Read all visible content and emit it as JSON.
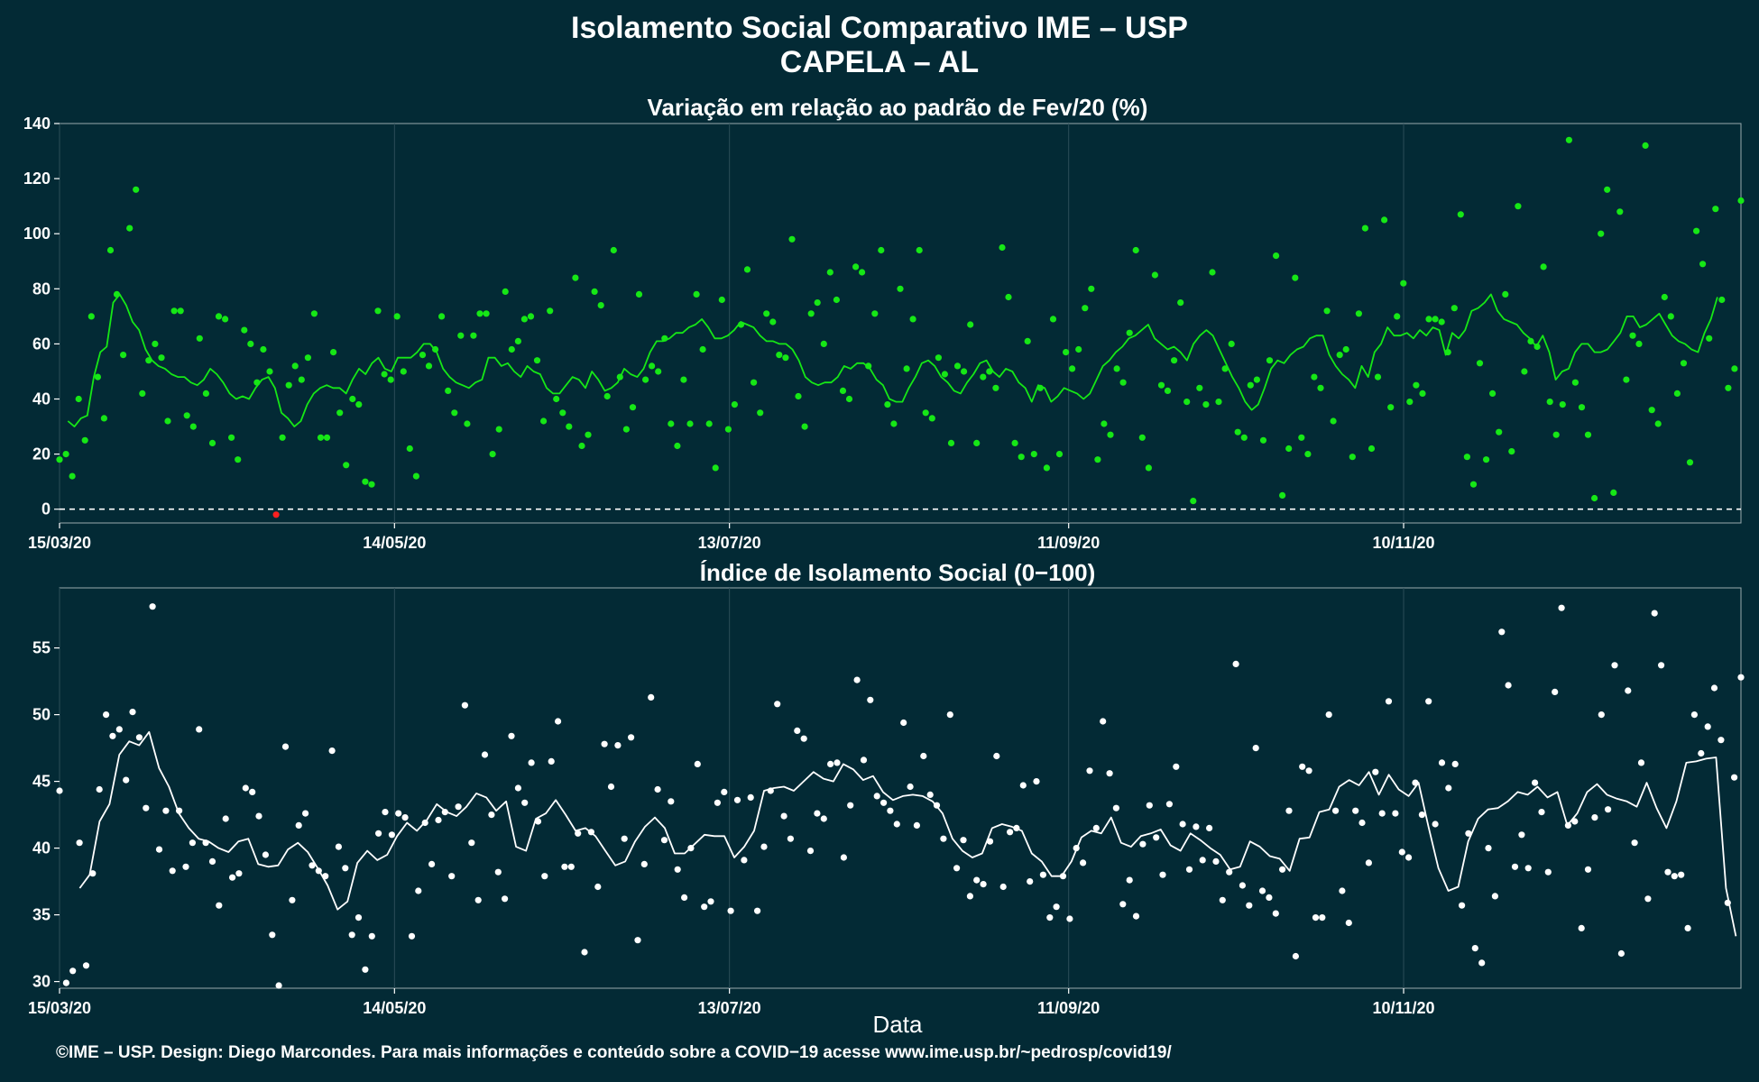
{
  "title": "Isolamento Social Comparativo IME – USP",
  "subtitle": "CAPELA – AL",
  "xlabel": "Data",
  "footer": "©IME – USP. Design: Diego Marcondes. Para mais informações e conteúdo sobre a COVID−19 acesse www.ime.usp.br/~pedrosp/covid19/",
  "x_ticks": [
    "15/03/20",
    "14/05/20",
    "13/07/20",
    "11/09/20",
    "10/11/20"
  ],
  "colors": {
    "background": "#032a35",
    "variation": "#16e716",
    "negative": "#ff2020",
    "index": "#ffffff"
  },
  "chart_data": [
    {
      "type": "scatter",
      "title": "Variação em relação ao padrão de Fev/20 (%)",
      "x_start": "15/03/20",
      "x_step_days": 3,
      "ylim": [
        -5,
        140
      ],
      "y_ticks": [
        0,
        20,
        40,
        60,
        80,
        100,
        120,
        140
      ],
      "reference_line": 0,
      "series": [
        {
          "kind": "points",
          "values": [
            18,
            20,
            12,
            40,
            25,
            70,
            48,
            33,
            94,
            78,
            56,
            102,
            116,
            42,
            54,
            60,
            55,
            32,
            72,
            72,
            34,
            30,
            62,
            42,
            24,
            70,
            69,
            26,
            18,
            65,
            60,
            46,
            58,
            50,
            -2,
            26,
            45,
            52,
            47,
            55,
            71,
            26,
            26,
            57,
            35,
            16,
            40,
            38,
            10,
            9,
            72,
            49,
            47,
            70,
            50,
            22,
            12,
            56,
            52,
            58,
            70,
            43,
            35,
            63,
            31,
            63,
            71,
            71,
            20,
            29,
            79,
            58,
            61,
            69,
            70,
            54,
            32,
            72,
            40,
            35,
            30,
            84,
            23,
            27,
            79,
            74,
            41,
            94,
            48,
            29,
            37,
            78,
            47,
            52,
            50,
            62,
            31,
            23,
            47,
            31,
            78,
            58,
            31,
            15,
            76,
            29,
            38,
            67,
            87,
            46,
            35,
            71,
            68,
            56,
            55,
            98,
            41,
            30,
            71,
            75,
            60,
            86,
            76,
            43,
            40,
            88,
            86,
            52,
            71,
            94,
            38,
            31,
            80,
            51,
            69,
            94,
            35,
            33,
            55,
            49,
            24,
            52,
            50,
            67,
            24,
            48,
            50,
            44,
            95,
            77,
            24,
            19,
            61,
            20,
            44,
            15,
            69,
            20,
            57,
            51,
            58,
            73,
            80,
            18,
            31,
            27,
            51,
            46,
            64,
            94,
            26,
            15,
            85,
            45,
            43,
            54,
            75,
            39,
            3,
            44,
            38,
            86,
            39,
            51,
            60,
            28,
            26,
            45,
            47,
            25,
            54,
            92,
            5,
            22,
            84,
            26,
            20,
            48,
            44,
            72,
            32,
            56,
            58,
            19,
            71,
            102,
            22,
            48,
            105,
            37,
            70,
            82,
            39,
            45,
            42,
            69,
            69,
            68,
            57,
            73,
            107,
            19,
            9,
            53,
            18,
            42,
            28,
            78,
            21,
            110,
            50,
            61,
            59,
            88,
            39,
            27,
            38,
            134,
            46,
            37,
            27,
            4,
            100,
            116,
            6,
            108,
            47,
            63,
            60,
            132,
            36,
            31,
            77,
            70,
            42,
            53,
            17,
            101,
            89,
            62,
            109,
            76,
            44,
            51,
            112
          ]
        },
        {
          "kind": "moving_average",
          "values": [
            32,
            30,
            33,
            34,
            48,
            57,
            59,
            75,
            78,
            74,
            68,
            65,
            58,
            54,
            52,
            51,
            49,
            48,
            48,
            46,
            45,
            47,
            51,
            49,
            46,
            42,
            40,
            41,
            40,
            44,
            47,
            48,
            44,
            35,
            33,
            30,
            32,
            38,
            42,
            44,
            45,
            44,
            44,
            42,
            47,
            51,
            49,
            53,
            55,
            51,
            50,
            55,
            55,
            55,
            57,
            60,
            60,
            57,
            51,
            48,
            46,
            45,
            44,
            46,
            47,
            55,
            55,
            52,
            53,
            50,
            48,
            52,
            50,
            49,
            44,
            42,
            42,
            45,
            48,
            47,
            44,
            50,
            47,
            43,
            44,
            46,
            51,
            49,
            48,
            51,
            57,
            61,
            61,
            62,
            64,
            64,
            66,
            67,
            69,
            66,
            62,
            62,
            63,
            65,
            68,
            67,
            66,
            63,
            61,
            61,
            60,
            60,
            58,
            54,
            48,
            46,
            45,
            46,
            46,
            48,
            52,
            51,
            53,
            53,
            51,
            47,
            45,
            40,
            39,
            39,
            44,
            48,
            53,
            54,
            52,
            48,
            46,
            43,
            42,
            46,
            49,
            53,
            54,
            50,
            48,
            51,
            50,
            46,
            44,
            39,
            45,
            44,
            39,
            41,
            44,
            43,
            42,
            40,
            42,
            47,
            52,
            54,
            57,
            59,
            62,
            63,
            65,
            67,
            62,
            60,
            58,
            59,
            57,
            54,
            60,
            63,
            65,
            63,
            58,
            53,
            48,
            44,
            39,
            36,
            38,
            44,
            51,
            54,
            53,
            56,
            58,
            59,
            62,
            63,
            63,
            56,
            52,
            49,
            47,
            44,
            52,
            48,
            57,
            60,
            66,
            63,
            63,
            64,
            62,
            65,
            63,
            66,
            65,
            56,
            64,
            62,
            65,
            72,
            73,
            75,
            78,
            72,
            69,
            68,
            67,
            64,
            62,
            59,
            63,
            57,
            47,
            50,
            51,
            57,
            60,
            60,
            57,
            57,
            58,
            61,
            64,
            70,
            70,
            66,
            67,
            69,
            71,
            67,
            63,
            61,
            60,
            58,
            57,
            64,
            69,
            77
          ]
        }
      ]
    },
    {
      "type": "scatter",
      "title": "Índice de Isolamento Social (0−100)",
      "x_start": "15/03/20",
      "x_step_days": 3,
      "ylim": [
        29.5,
        59.5
      ],
      "y_ticks": [
        30,
        35,
        40,
        45,
        50,
        55
      ],
      "series": [
        {
          "kind": "points",
          "values": [
            44.3,
            29.9,
            30.8,
            40.4,
            31.2,
            38.1,
            44.4,
            50.0,
            48.4,
            48.9,
            45.1,
            50.2,
            48.3,
            43.0,
            58.1,
            39.9,
            42.8,
            38.3,
            42.8,
            38.6,
            40.4,
            48.9,
            40.4,
            39.0,
            35.7,
            42.2,
            37.8,
            38.1,
            44.5,
            44.2,
            42.4,
            39.5,
            33.5,
            29.7,
            47.6,
            36.1,
            41.7,
            42.6,
            38.7,
            38.3,
            37.9,
            47.3,
            40.1,
            38.5,
            33.5,
            34.8,
            30.9,
            33.4,
            41.1,
            42.7,
            41.0,
            42.6,
            42.3,
            33.4,
            36.8,
            41.9,
            38.8,
            42.1,
            42.7,
            37.9,
            43.1,
            50.7,
            40.4,
            36.1,
            47.0,
            42.5,
            38.2,
            36.2,
            48.4,
            44.5,
            43.4,
            46.4,
            42.0,
            37.9,
            46.5,
            49.5,
            38.6,
            38.6,
            41.1,
            32.2,
            41.2,
            37.1,
            47.8,
            44.6,
            47.7,
            40.7,
            48.3,
            33.1,
            38.8,
            51.3,
            44.4,
            40.6,
            43.5,
            38.4,
            36.3,
            40.0,
            46.3,
            35.6,
            36.0,
            43.4,
            44.2,
            35.3,
            43.6,
            39.1,
            43.8,
            35.3,
            40.1,
            44.3,
            50.8,
            42.4,
            40.7,
            48.8,
            48.2,
            39.8,
            42.6,
            42.2,
            46.3,
            46.4,
            39.3,
            43.2,
            52.6,
            46.6,
            51.1,
            43.9,
            43.4,
            42.8,
            41.8,
            49.4,
            44.6,
            41.7,
            46.9,
            44.0,
            43.2,
            40.7,
            50.0,
            38.5,
            40.6,
            36.4,
            37.6,
            37.3,
            40.5,
            46.9,
            37.1,
            41.2,
            41.5,
            44.7,
            37.5,
            45.0,
            38.0,
            34.8,
            35.6,
            37.9,
            34.7,
            40.0,
            38.9,
            45.8,
            41.5,
            49.5,
            45.6,
            43.0,
            35.8,
            37.6,
            34.9,
            40.3,
            43.2,
            40.8,
            38.0,
            43.3,
            46.1,
            41.8,
            38.4,
            41.6,
            39.1,
            41.5,
            39.0,
            36.1,
            38.2,
            53.8,
            37.2,
            35.7,
            47.5,
            36.8,
            36.3,
            35.1,
            38.4,
            42.8,
            31.9,
            46.1,
            45.8,
            34.8,
            34.8,
            50.0,
            42.8,
            36.8,
            34.4,
            42.8,
            41.9,
            38.9,
            45.7,
            42.6,
            51.0,
            42.6,
            39.7,
            39.3,
            44.9,
            42.5,
            51.0,
            41.8,
            46.4,
            44.5,
            46.3,
            35.7,
            41.1,
            32.5,
            31.4,
            40.0,
            36.4,
            56.2,
            52.2,
            38.6,
            41.0,
            38.5,
            44.9,
            42.7,
            38.2,
            51.7,
            58.0,
            41.7,
            42.0,
            34.0,
            38.4,
            42.3,
            50.0,
            42.9,
            53.7,
            32.1,
            51.8,
            40.4,
            46.4,
            36.2,
            57.6,
            53.7,
            38.2,
            37.9,
            38.0,
            34.0,
            50.0,
            47.1,
            49.1,
            52.0,
            48.1,
            35.9,
            45.3,
            52.8
          ]
        },
        {
          "kind": "moving_average",
          "values": [
            37.0,
            38.0,
            42.0,
            43.3,
            47.0,
            48.0,
            47.7,
            48.7,
            46.0,
            44.6,
            42.6,
            41.5,
            40.7,
            40.5,
            40.0,
            39.7,
            40.5,
            40.7,
            38.8,
            38.6,
            38.7,
            39.9,
            40.4,
            39.7,
            38.5,
            37.2,
            35.4,
            36.0,
            38.9,
            39.8,
            39.1,
            39.5,
            40.9,
            41.9,
            41.3,
            42.1,
            43.3,
            42.7,
            42.4,
            43.1,
            44.1,
            43.8,
            42.8,
            43.5,
            40.1,
            39.8,
            42.2,
            42.6,
            43.6,
            42.5,
            41.3,
            41.5,
            40.9,
            39.8,
            38.7,
            39.0,
            40.5,
            41.6,
            42.3,
            41.5,
            39.6,
            39.6,
            40.3,
            41.0,
            40.9,
            40.9,
            39.3,
            40.1,
            41.3,
            44.3,
            44.5,
            44.6,
            44.3,
            45.0,
            45.7,
            45.2,
            45.0,
            46.3,
            45.9,
            45.1,
            45.4,
            44.2,
            43.6,
            43.9,
            44.0,
            43.9,
            43.5,
            42.6,
            40.7,
            39.8,
            39.3,
            39.6,
            41.5,
            41.8,
            41.6,
            41.3,
            39.6,
            39.0,
            37.9,
            37.9,
            39.0,
            40.8,
            41.3,
            41.1,
            42.3,
            40.4,
            40.1,
            40.9,
            41.1,
            41.4,
            40.2,
            39.8,
            41.1,
            40.6,
            40.0,
            39.5,
            38.4,
            38.6,
            40.5,
            40.1,
            39.4,
            39.2,
            38.3,
            40.7,
            40.8,
            42.7,
            42.9,
            44.6,
            45.1,
            44.7,
            45.7,
            44.0,
            45.5,
            44.4,
            43.9,
            44.9,
            41.6,
            38.5,
            36.8,
            37.1,
            40.5,
            42.2,
            42.9,
            43.0,
            43.5,
            44.2,
            44.0,
            44.6,
            43.8,
            44.2,
            41.7,
            42.6,
            44.2,
            44.8,
            44.0,
            43.7,
            43.5,
            43.1,
            44.9,
            43.0,
            41.5,
            43.5,
            46.4,
            46.5,
            46.7,
            46.8,
            37.0,
            33.4
          ]
        }
      ]
    }
  ]
}
